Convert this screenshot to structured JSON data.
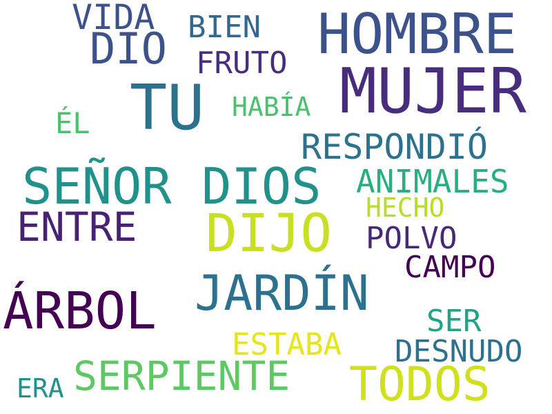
{
  "words": [
    {
      "text": "HOMBRE"
    },
    {
      "text": "MUJER"
    },
    {
      "text": "SEÑOR DIOS"
    },
    {
      "text": "DIJO"
    },
    {
      "text": "JARDÍN"
    },
    {
      "text": "ÁRBOL"
    },
    {
      "text": "TODOS"
    },
    {
      "text": "TU"
    },
    {
      "text": "SERPIENTE"
    },
    {
      "text": "DIO"
    },
    {
      "text": "ENTRE"
    },
    {
      "text": "RESPONDIÓ"
    },
    {
      "text": "VIDA"
    },
    {
      "text": "ANIMALES"
    },
    {
      "text": "ESTABA"
    },
    {
      "text": "CAMPO"
    },
    {
      "text": "DESNUDO"
    },
    {
      "text": "POLVO"
    },
    {
      "text": "FRUTO"
    },
    {
      "text": "BIEN"
    },
    {
      "text": "SER"
    },
    {
      "text": "HABÍA"
    },
    {
      "text": "HECHO"
    },
    {
      "text": "ÉL"
    },
    {
      "text": "ERA"
    }
  ]
}
